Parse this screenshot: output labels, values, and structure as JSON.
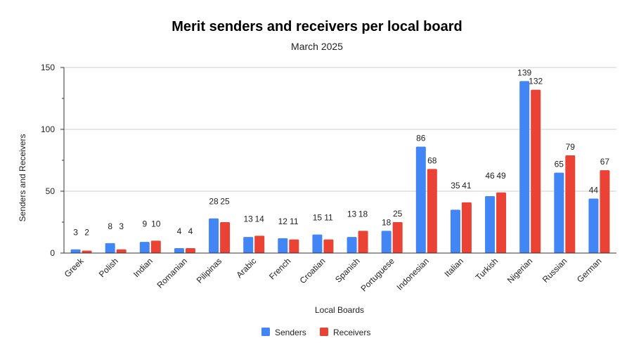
{
  "chart_data": {
    "type": "bar",
    "title": "Merit senders and receivers per local board",
    "subtitle": "March 2025",
    "xlabel": "Local Boards",
    "ylabel": "Senders and Receivers",
    "ylim": [
      0,
      150
    ],
    "yticks": [
      0,
      50,
      100,
      150
    ],
    "grid": true,
    "legend_position": "bottom",
    "categories": [
      "Greek",
      "Polish",
      "Indian",
      "Romanian",
      "Pilipinas",
      "Arabic",
      "French",
      "Croatian",
      "Spanish",
      "Portuguese",
      "Indonesian",
      "Italian",
      "Turkish",
      "Nigerian",
      "Russian",
      "German"
    ],
    "series": [
      {
        "name": "Senders",
        "color": "#4285f4",
        "values": [
          3,
          8,
          9,
          4,
          28,
          13,
          12,
          15,
          13,
          18,
          86,
          35,
          46,
          139,
          65,
          44
        ]
      },
      {
        "name": "Receivers",
        "color": "#ea4335",
        "values": [
          2,
          3,
          10,
          4,
          25,
          14,
          11,
          11,
          18,
          25,
          68,
          41,
          49,
          132,
          79,
          67
        ]
      }
    ]
  }
}
